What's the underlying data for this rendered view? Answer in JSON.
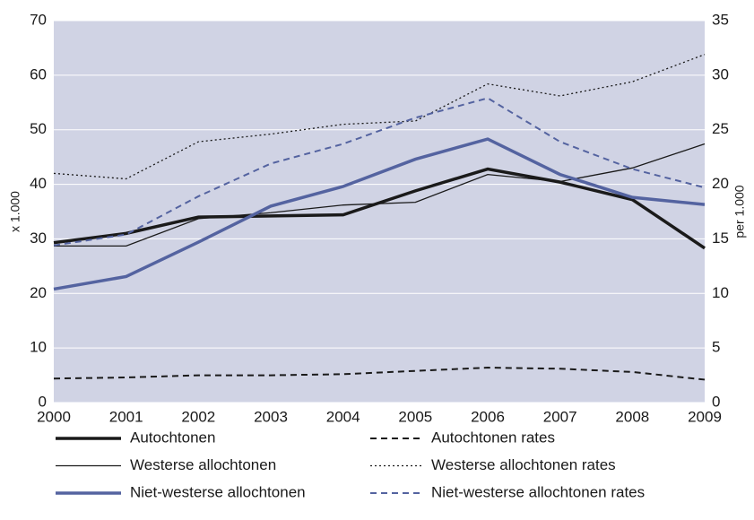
{
  "chart_data": {
    "type": "line",
    "categories": [
      "2000",
      "2001",
      "2002",
      "2003",
      "2004",
      "2005",
      "2006",
      "2007",
      "2008",
      "2009"
    ],
    "ylabel": "x 1.000",
    "y2label": "per 1.000",
    "ylim": [
      0,
      70
    ],
    "yticks": [
      0,
      10,
      20,
      30,
      40,
      50,
      60,
      70
    ],
    "y2lim": [
      0,
      35
    ],
    "y2ticks": [
      0,
      5,
      10,
      15,
      20,
      25,
      30,
      35
    ],
    "grid": true,
    "background": "#d0d3e4",
    "legend": "bottom",
    "series": [
      {
        "name": "Autochtonen",
        "color": "#1a1a1a",
        "style": "solid",
        "width": 3.5,
        "values": [
          29.3,
          31.0,
          34.0,
          34.2,
          34.4,
          38.8,
          42.8,
          40.4,
          37.2,
          28.3
        ]
      },
      {
        "name": "Autochtonen rates",
        "color": "#1a1a1a",
        "style": "dashed",
        "width": 2,
        "axis": "y2",
        "values": [
          2.2,
          2.3,
          2.5,
          2.5,
          2.6,
          2.9,
          3.2,
          3.1,
          2.8,
          2.1
        ]
      },
      {
        "name": "Westerse allochtonen",
        "color": "#1a1a1a",
        "style": "solid",
        "width": 1.3,
        "values": [
          28.7,
          28.7,
          33.7,
          34.8,
          36.2,
          36.7,
          41.8,
          40.5,
          43.0,
          47.4
        ]
      },
      {
        "name": "Westerse allochtonen rates",
        "color": "#1a1a1a",
        "style": "dotted",
        "width": 1.3,
        "axis": "y2",
        "values": [
          21.0,
          20.5,
          23.9,
          24.6,
          25.5,
          25.8,
          29.2,
          28.1,
          29.4,
          31.9
        ]
      },
      {
        "name": "Niet-westerse allochtonen",
        "color": "#5463a0",
        "style": "solid",
        "width": 3.5,
        "values": [
          20.8,
          23.1,
          29.4,
          36.0,
          39.6,
          44.6,
          48.3,
          41.8,
          37.6,
          36.3
        ]
      },
      {
        "name": "Niet-westerse allochtonen rates",
        "color": "#5463a0",
        "style": "dashed",
        "width": 2,
        "axis": "y2",
        "values": [
          14.4,
          15.4,
          18.9,
          21.9,
          23.7,
          26.1,
          27.9,
          23.9,
          21.4,
          19.7
        ]
      }
    ]
  }
}
